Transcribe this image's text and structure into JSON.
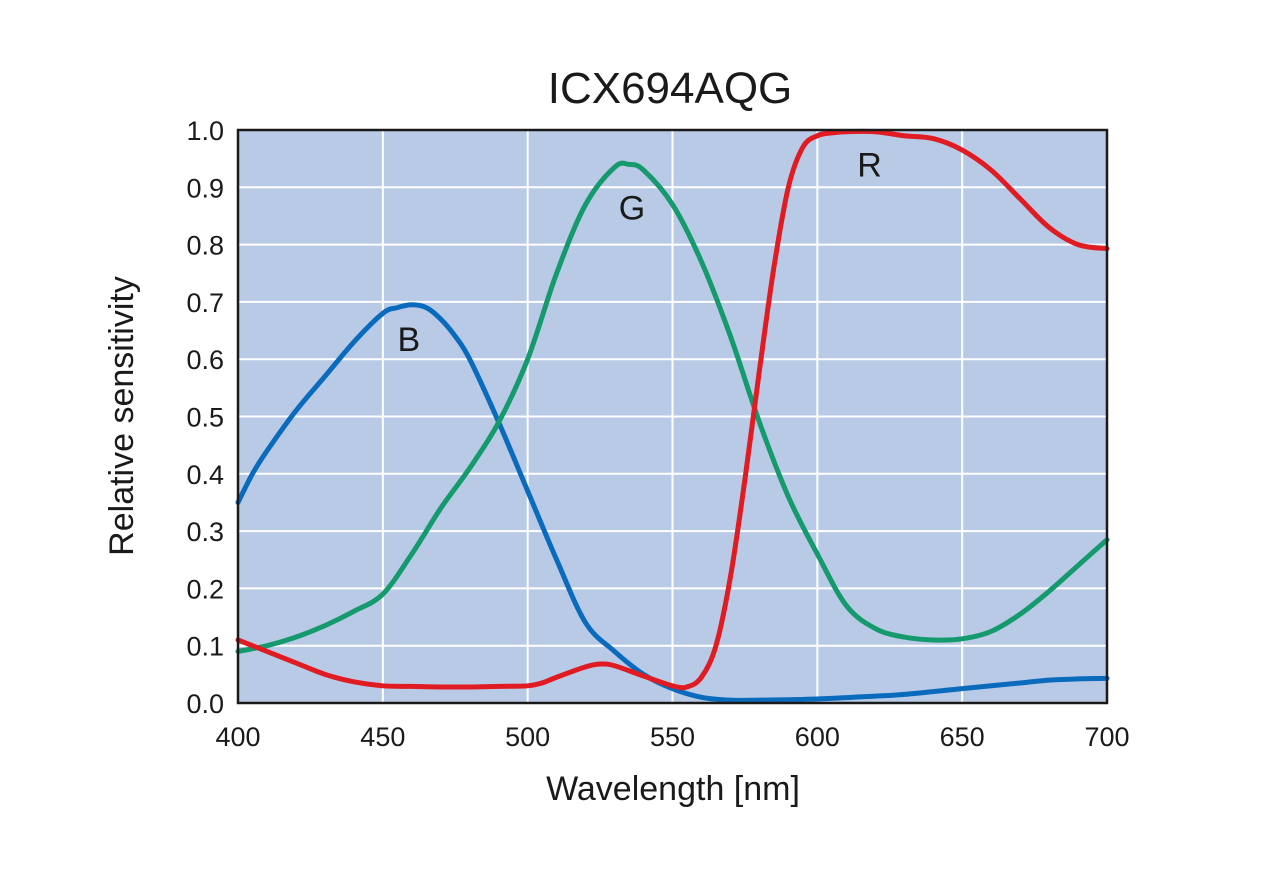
{
  "chart_data": {
    "type": "line",
    "title": "ICX694AQG",
    "xlabel": "Wavelength [nm]",
    "ylabel": "Relative sensitivity",
    "xlim": [
      400,
      700
    ],
    "ylim": [
      0.0,
      1.0
    ],
    "x_ticks": [
      400,
      450,
      500,
      550,
      600,
      650,
      700
    ],
    "x_tick_labels": [
      "400",
      "450",
      "500",
      "550",
      "600",
      "650",
      "700"
    ],
    "y_ticks": [
      0.0,
      0.1,
      0.2,
      0.3,
      0.4,
      0.5,
      0.6,
      0.7,
      0.8,
      0.9,
      1.0
    ],
    "y_tick_labels": [
      "0.0",
      "0.1",
      "0.2",
      "0.3",
      "0.4",
      "0.5",
      "0.6",
      "0.7",
      "0.8",
      "0.9",
      "1.0"
    ],
    "grid": true,
    "plot_background": "#b8cae6",
    "series": [
      {
        "name": "B",
        "color": "#0a6bbd",
        "label_anchor": [
          459,
          0.635
        ],
        "x": [
          400,
          405,
          410,
          420,
          430,
          440,
          450,
          455,
          460,
          465,
          470,
          475,
          480,
          490,
          500,
          510,
          520,
          530,
          540,
          550,
          560,
          570,
          580,
          600,
          620,
          630,
          650,
          670,
          680,
          690,
          700
        ],
        "y": [
          0.35,
          0.4,
          0.44,
          0.51,
          0.57,
          0.63,
          0.68,
          0.69,
          0.695,
          0.69,
          0.67,
          0.64,
          0.6,
          0.49,
          0.37,
          0.25,
          0.14,
          0.09,
          0.05,
          0.025,
          0.01,
          0.005,
          0.005,
          0.007,
          0.012,
          0.015,
          0.025,
          0.035,
          0.04,
          0.042,
          0.043
        ]
      },
      {
        "name": "G",
        "color": "#159a6e",
        "label_anchor": [
          536,
          0.865
        ],
        "x": [
          400,
          410,
          420,
          430,
          440,
          450,
          460,
          470,
          480,
          490,
          500,
          510,
          520,
          530,
          535,
          540,
          550,
          560,
          570,
          580,
          590,
          600,
          610,
          620,
          630,
          640,
          650,
          660,
          670,
          680,
          690,
          700
        ],
        "y": [
          0.09,
          0.1,
          0.115,
          0.135,
          0.16,
          0.19,
          0.26,
          0.34,
          0.41,
          0.49,
          0.6,
          0.75,
          0.87,
          0.935,
          0.94,
          0.93,
          0.87,
          0.77,
          0.64,
          0.49,
          0.36,
          0.26,
          0.17,
          0.13,
          0.115,
          0.11,
          0.112,
          0.125,
          0.155,
          0.195,
          0.24,
          0.285
        ]
      },
      {
        "name": "R",
        "color": "#e11b22",
        "label_anchor": [
          618,
          0.94
        ],
        "x": [
          400,
          410,
          420,
          430,
          440,
          450,
          460,
          470,
          480,
          490,
          500,
          505,
          510,
          520,
          525,
          530,
          540,
          550,
          555,
          560,
          565,
          570,
          575,
          580,
          585,
          590,
          595,
          600,
          605,
          610,
          620,
          630,
          640,
          650,
          660,
          670,
          680,
          690,
          700
        ],
        "y": [
          0.11,
          0.09,
          0.07,
          0.05,
          0.037,
          0.03,
          0.029,
          0.028,
          0.028,
          0.029,
          0.03,
          0.035,
          0.045,
          0.063,
          0.068,
          0.065,
          0.047,
          0.03,
          0.028,
          0.045,
          0.1,
          0.22,
          0.39,
          0.58,
          0.76,
          0.9,
          0.97,
          0.99,
          0.995,
          0.997,
          0.997,
          0.99,
          0.985,
          0.965,
          0.93,
          0.88,
          0.83,
          0.8,
          0.793
        ]
      }
    ]
  }
}
